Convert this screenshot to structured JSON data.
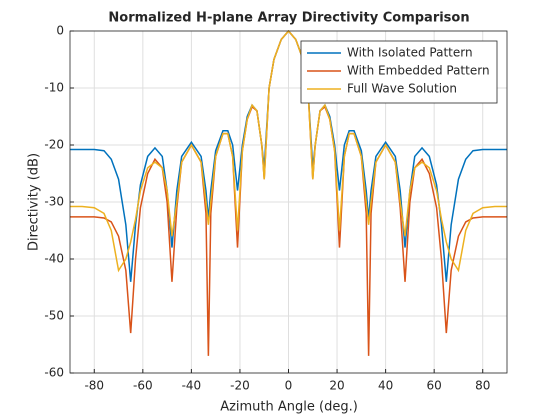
{
  "chart_data": {
    "type": "line",
    "title": "Normalized H-plane Array Directivity Comparison",
    "xlabel": "Azimuth Angle (deg.)",
    "ylabel": "Directivity (dB)",
    "x": [
      -90,
      -85,
      -80,
      -76,
      -73,
      -70,
      -67,
      -65,
      -63,
      -61,
      -58,
      -55,
      -52,
      -50,
      -48,
      -46,
      -44,
      -40,
      -36,
      -34,
      -33,
      -32,
      -30,
      -27,
      -25,
      -23,
      -21,
      -19,
      -17,
      -15,
      -13,
      -11,
      -10,
      -8,
      -6,
      -3,
      0,
      3,
      6,
      8,
      10,
      11,
      13,
      15,
      17,
      19,
      21,
      23,
      25,
      27,
      30,
      32,
      33,
      34,
      36,
      40,
      44,
      46,
      48,
      50,
      52,
      55,
      58,
      61,
      63,
      65,
      67,
      70,
      73,
      76,
      80,
      85,
      90
    ],
    "series": [
      {
        "name": "With Isolated Pattern",
        "color": "#0072BD",
        "values": [
          -20.8,
          -20.8,
          -20.8,
          -21,
          -22.5,
          -26,
          -34,
          -44,
          -34,
          -27,
          -22,
          -20.5,
          -22,
          -28,
          -38,
          -28,
          -22,
          -19.5,
          -22,
          -28,
          -33,
          -28,
          -21,
          -17.5,
          -17.5,
          -20,
          -28,
          -20,
          -15,
          -13,
          -14,
          -20,
          -24,
          -10,
          -5,
          -1.5,
          0,
          -1.5,
          -5,
          -10,
          -24,
          -20,
          -14,
          -13,
          -15,
          -20,
          -28,
          -20,
          -17.5,
          -17.5,
          -21,
          -28,
          -33,
          -28,
          -22,
          -19.5,
          -22,
          -28,
          -38,
          -28,
          -22,
          -20.5,
          -22,
          -27,
          -34,
          -44,
          -34,
          -26,
          -22.5,
          -21,
          -20.8,
          -20.8,
          -20.8
        ]
      },
      {
        "name": "With Embedded Pattern",
        "color": "#D95319",
        "values": [
          -32.6,
          -32.6,
          -32.6,
          -32.8,
          -33.5,
          -36,
          -42,
          -53,
          -40,
          -31,
          -25,
          -22.5,
          -24,
          -30,
          -44,
          -31,
          -23,
          -20,
          -23,
          -32,
          -57,
          -32,
          -22,
          -18,
          -18,
          -22,
          -38,
          -21,
          -15.5,
          -13.3,
          -14,
          -20,
          -26,
          -10,
          -5,
          -1.5,
          0,
          -1.5,
          -5,
          -10,
          -26,
          -20,
          -14,
          -13.3,
          -15.5,
          -21,
          -38,
          -22,
          -18,
          -18,
          -22,
          -32,
          -57,
          -32,
          -23,
          -20,
          -23,
          -31,
          -44,
          -30,
          -24,
          -22.5,
          -25,
          -31,
          -40,
          -53,
          -42,
          -36,
          -33.5,
          -32.8,
          -32.6,
          -32.6,
          -32.6
        ]
      },
      {
        "name": "Full Wave Solution",
        "color": "#EDB120",
        "values": [
          -30.8,
          -30.8,
          -31,
          -32,
          -35,
          -42,
          -40,
          -37,
          -33,
          -28,
          -24,
          -23,
          -24,
          -28,
          -36,
          -30,
          -23,
          -20,
          -23,
          -30,
          -34,
          -30,
          -22,
          -18,
          -18,
          -22,
          -35,
          -21,
          -15.5,
          -13,
          -14,
          -20,
          -26,
          -10,
          -5,
          -1.5,
          0,
          -1.5,
          -5,
          -10,
          -26,
          -20,
          -14,
          -13,
          -15.5,
          -21,
          -35,
          -22,
          -18,
          -18,
          -22,
          -30,
          -34,
          -30,
          -23,
          -20,
          -23,
          -30,
          -36,
          -28,
          -24,
          -23,
          -24,
          -28,
          -33,
          -37,
          -40,
          -42,
          -35,
          -32,
          -31,
          -30.8,
          -30.8
        ]
      }
    ],
    "xlim": [
      -90,
      90
    ],
    "xticks": [
      -80,
      -60,
      -40,
      -20,
      0,
      20,
      40,
      60,
      80
    ],
    "ylim": [
      -60,
      0
    ],
    "yticks": [
      -60,
      -50,
      -40,
      -30,
      -20,
      -10,
      0
    ],
    "grid": true,
    "legend": "northeast"
  }
}
